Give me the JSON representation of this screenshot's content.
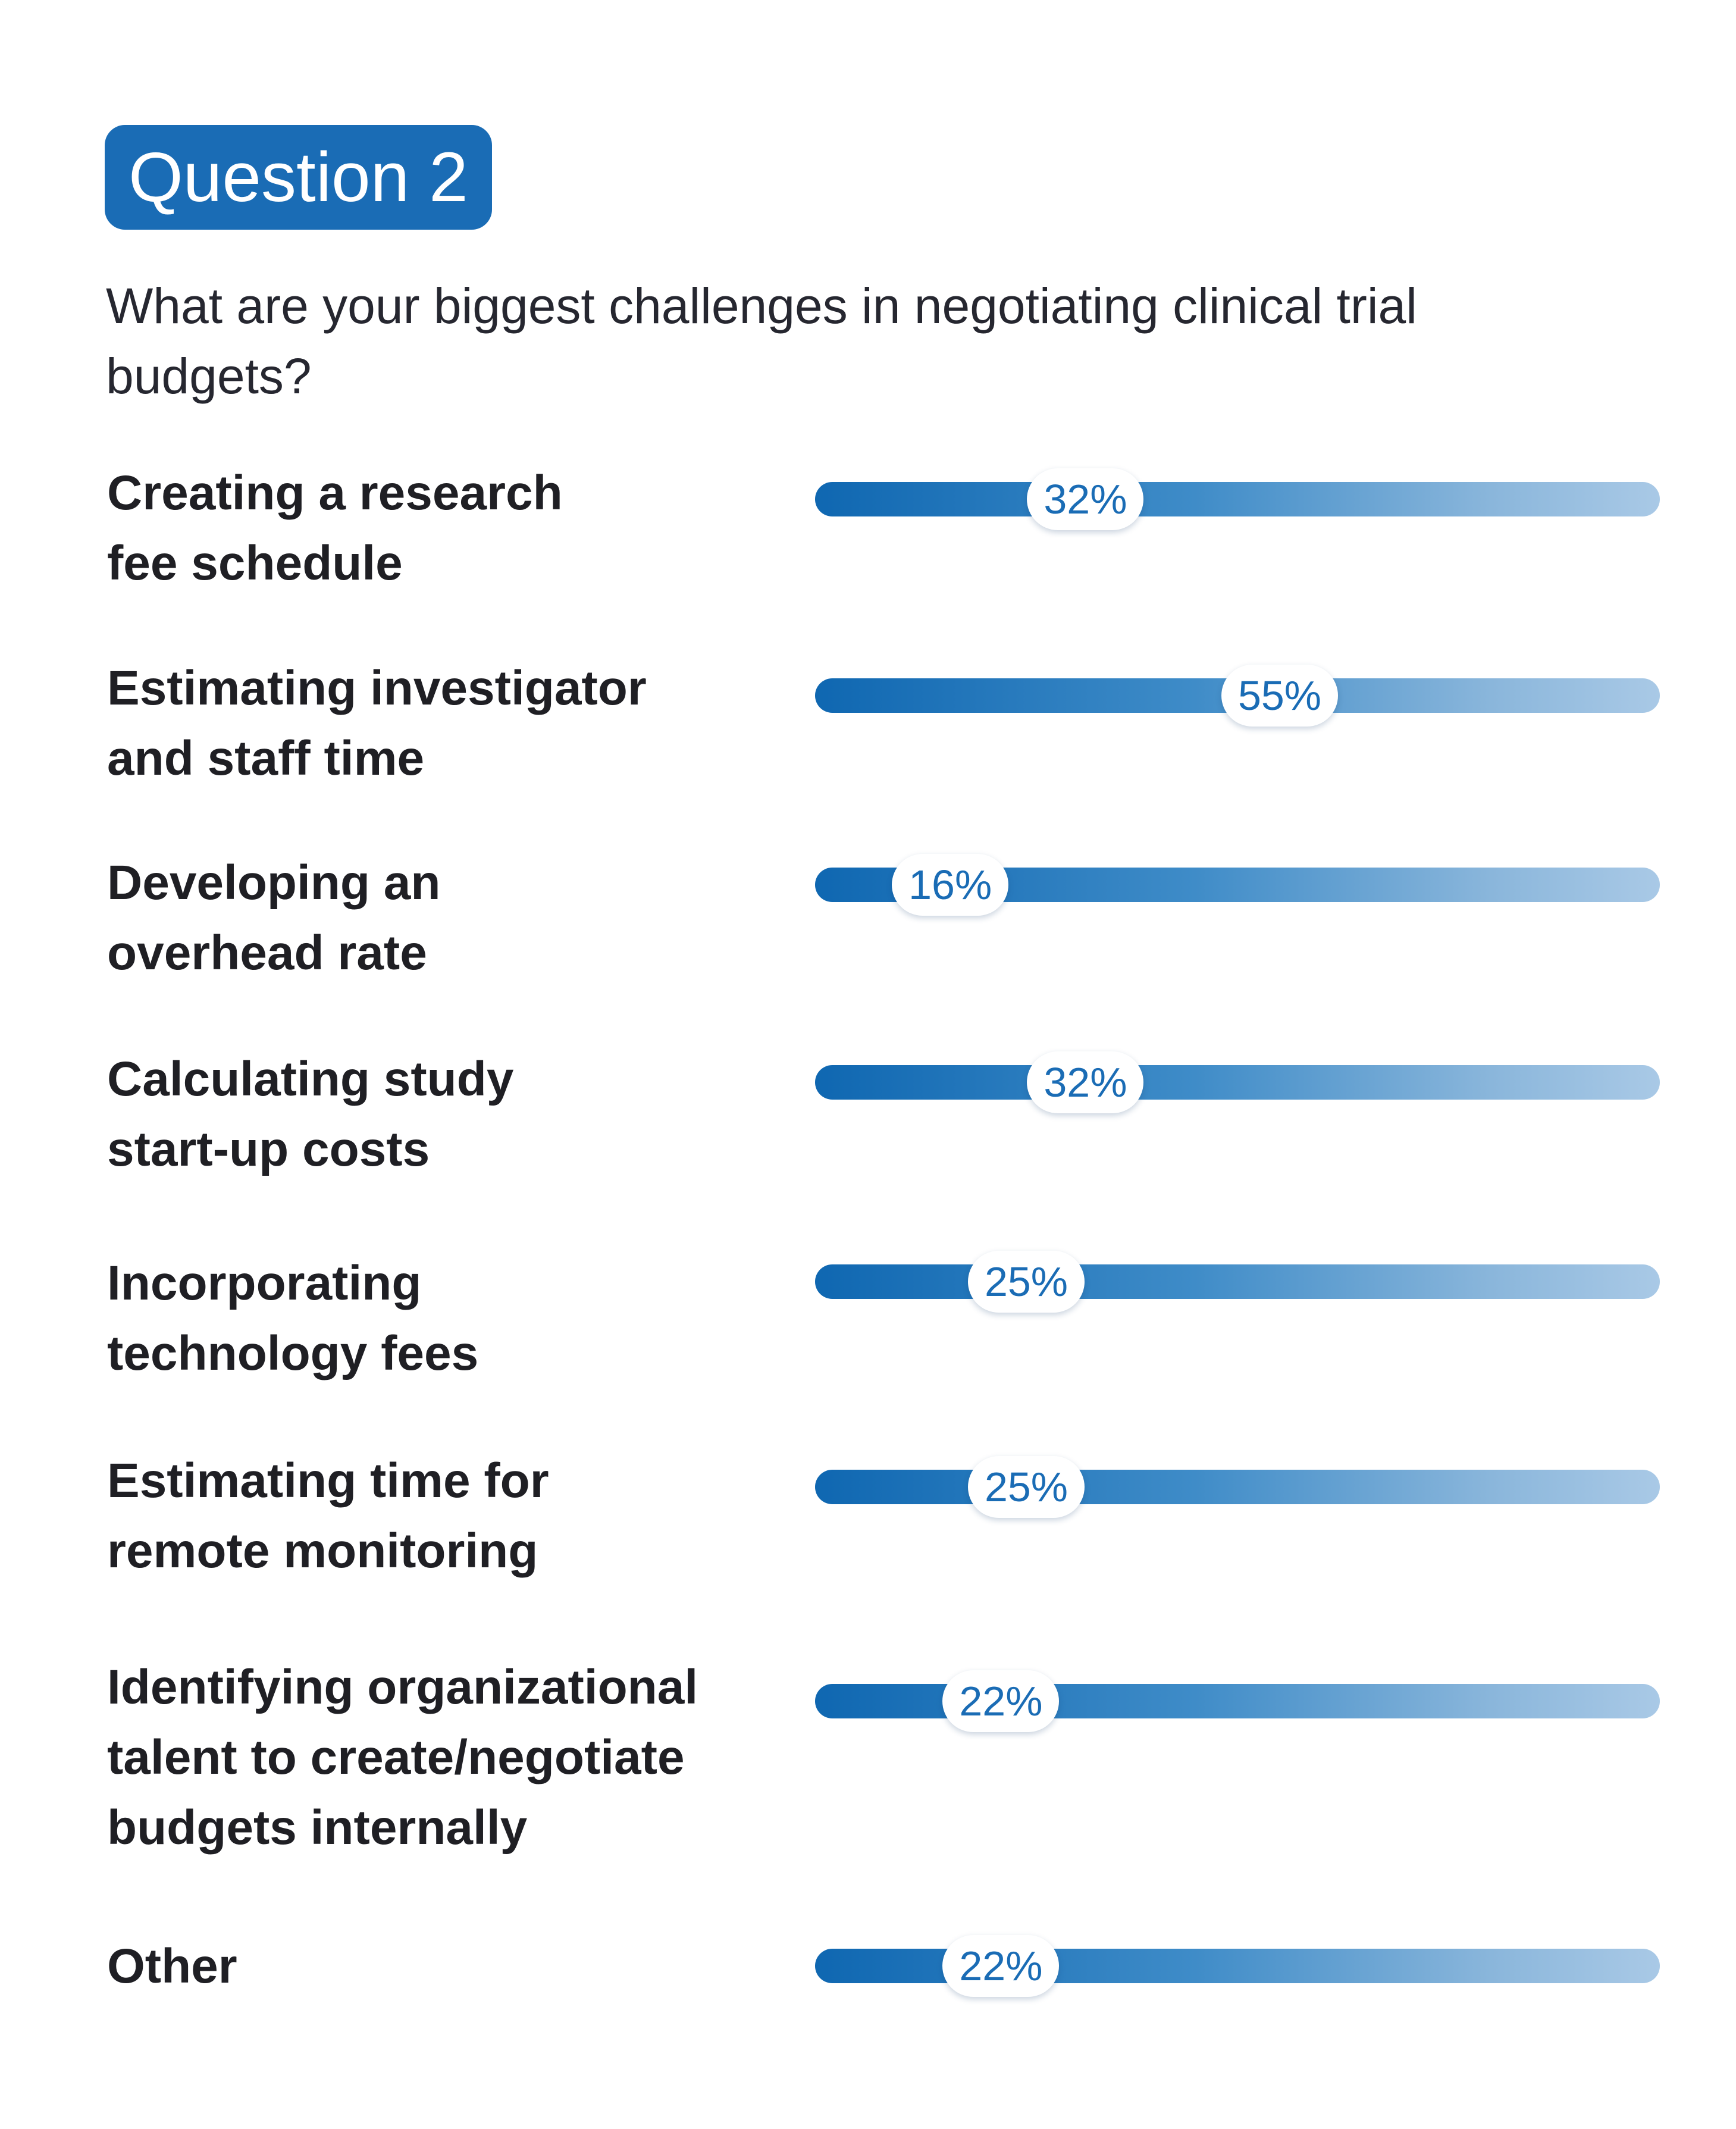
{
  "header": {
    "badge": "Question 2",
    "question": "What are your biggest challenges in negotiating clinical trial budgets?"
  },
  "chart_data": {
    "type": "bar",
    "orientation": "horizontal",
    "categories": [
      "Creating a research\nfee schedule",
      "Estimating investigator\nand staff time",
      "Developing an\noverhead rate",
      "Calculating study\nstart-up costs",
      "Incorporating\ntechnology fees",
      "Estimating time for\nremote monitoring",
      "Identifying organizational\ntalent to create/negotiate\nbudgets internally",
      "Other"
    ],
    "values": [
      32,
      55,
      16,
      32,
      25,
      25,
      22,
      22
    ],
    "value_labels": [
      "32%",
      "55%",
      "16%",
      "32%",
      "25%",
      "25%",
      "22%",
      "22%"
    ],
    "xlim": [
      0,
      100
    ],
    "unit": "%",
    "colors": {
      "bar_start": "#0f67b1",
      "bar_end": "#a9c9e6",
      "label_text": "#1a6cb5",
      "badge": "#1a6cb5"
    }
  }
}
